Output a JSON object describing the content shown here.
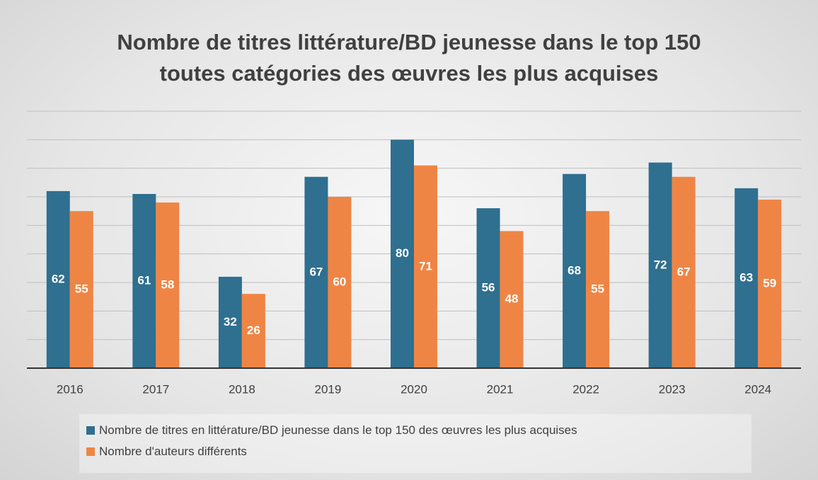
{
  "chart_data": {
    "type": "bar",
    "title": "Nombre de titres littérature/BD jeunesse dans le top 150 toutes catégories des œuvres les plus acquises",
    "categories": [
      "2016",
      "2017",
      "2018",
      "2019",
      "2020",
      "2021",
      "2022",
      "2023",
      "2024"
    ],
    "series": [
      {
        "name": "Nombre de titres en littérature/BD jeunesse dans le top 150 des œuvres les plus acquises",
        "color": "#2f6f8f",
        "values": [
          62,
          61,
          32,
          67,
          80,
          56,
          68,
          72,
          63
        ]
      },
      {
        "name": "Nombre d'auteurs différents",
        "color": "#ef8545",
        "values": [
          55,
          58,
          26,
          60,
          71,
          48,
          55,
          67,
          59
        ]
      }
    ],
    "ylim": [
      0,
      90
    ],
    "yticks": [
      0,
      10,
      20,
      30,
      40,
      50,
      60,
      70,
      80,
      90
    ],
    "grid": true,
    "legend": "bottom"
  }
}
